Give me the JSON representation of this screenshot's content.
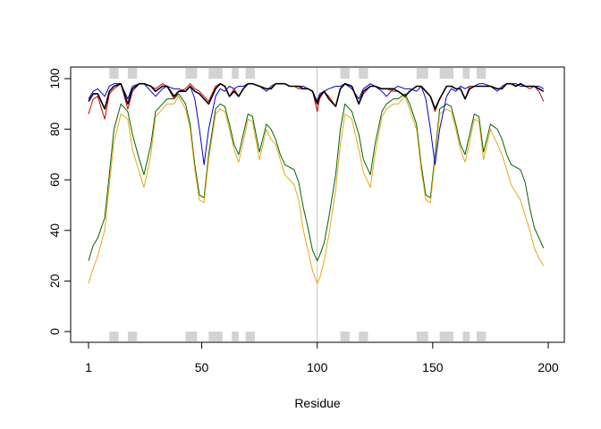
{
  "chart_data": {
    "type": "line",
    "title": "",
    "xlabel": "Residue",
    "ylabel": "",
    "xlim": [
      1,
      200
    ],
    "ylim": [
      0,
      100
    ],
    "x_ticks": [
      1,
      50,
      100,
      150,
      200
    ],
    "y_ticks": [
      0,
      20,
      40,
      60,
      80,
      100
    ],
    "vline": 100,
    "grid": false,
    "legend": "none",
    "shaded_regions": [
      [
        10,
        14
      ],
      [
        18,
        22
      ],
      [
        43,
        48
      ],
      [
        53,
        59
      ],
      [
        63,
        66
      ],
      [
        69,
        73
      ],
      [
        110,
        114
      ],
      [
        118,
        122
      ],
      [
        143,
        148
      ],
      [
        153,
        159
      ],
      [
        163,
        166
      ],
      [
        169,
        173
      ]
    ],
    "series": [
      {
        "color": "#006400",
        "x": [
          1,
          3,
          5,
          8,
          10,
          12,
          15,
          18,
          20,
          23,
          25,
          28,
          30,
          33,
          35,
          38,
          40,
          43,
          45,
          47,
          49,
          51,
          53,
          56,
          58,
          60,
          62,
          64,
          66,
          68,
          70,
          72,
          75,
          78,
          80,
          82,
          84,
          86,
          88,
          90,
          92,
          94,
          96,
          98,
          100,
          101,
          103,
          105,
          108,
          110,
          112,
          115,
          118,
          120,
          123,
          125,
          128,
          130,
          133,
          135,
          138,
          140,
          143,
          145,
          147,
          149,
          151,
          153,
          156,
          158,
          160,
          162,
          164,
          166,
          168,
          170,
          172,
          175,
          178,
          180,
          182,
          184,
          186,
          188,
          190,
          192,
          194,
          196,
          198
        ],
        "y": [
          28,
          34,
          37,
          45,
          62,
          80,
          90,
          87,
          78,
          68,
          62,
          74,
          87,
          90,
          92,
          92,
          94,
          90,
          82,
          66,
          54,
          53,
          70,
          88,
          90,
          89,
          82,
          74,
          70,
          78,
          86,
          85,
          71,
          82,
          80,
          76,
          70,
          66,
          65,
          64,
          59,
          49,
          41,
          32,
          28,
          30,
          35,
          45,
          62,
          80,
          90,
          87,
          78,
          68,
          62,
          74,
          87,
          90,
          92,
          92,
          94,
          90,
          82,
          66,
          54,
          53,
          70,
          88,
          90,
          89,
          82,
          74,
          70,
          78,
          86,
          85,
          71,
          82,
          80,
          76,
          70,
          66,
          65,
          64,
          59,
          49,
          41,
          37,
          33
        ]
      },
      {
        "color": "#E6A817",
        "x": [
          1,
          3,
          5,
          8,
          10,
          12,
          15,
          18,
          20,
          23,
          25,
          28,
          30,
          33,
          35,
          38,
          40,
          43,
          45,
          47,
          49,
          51,
          53,
          56,
          58,
          60,
          62,
          64,
          66,
          68,
          70,
          72,
          75,
          78,
          80,
          82,
          84,
          86,
          88,
          90,
          92,
          94,
          96,
          98,
          100,
          101,
          103,
          105,
          108,
          110,
          112,
          115,
          118,
          120,
          123,
          125,
          128,
          130,
          133,
          135,
          138,
          140,
          143,
          145,
          147,
          149,
          151,
          153,
          156,
          158,
          160,
          162,
          164,
          166,
          168,
          170,
          172,
          175,
          178,
          180,
          182,
          184,
          186,
          188,
          190,
          192,
          194,
          196,
          198
        ],
        "y": [
          19,
          25,
          30,
          40,
          58,
          75,
          86,
          84,
          72,
          63,
          57,
          70,
          85,
          88,
          90,
          90,
          93,
          88,
          80,
          64,
          52,
          51,
          68,
          86,
          88,
          87,
          80,
          72,
          67,
          75,
          84,
          83,
          68,
          80,
          76,
          74,
          68,
          62,
          60,
          58,
          52,
          40,
          32,
          24,
          19,
          21,
          28,
          38,
          56,
          74,
          86,
          84,
          72,
          63,
          57,
          70,
          85,
          88,
          90,
          90,
          93,
          88,
          80,
          64,
          52,
          51,
          68,
          86,
          88,
          87,
          80,
          72,
          67,
          75,
          84,
          83,
          68,
          80,
          74,
          70,
          64,
          58,
          55,
          52,
          46,
          40,
          33,
          29,
          26
        ]
      },
      {
        "color": "#0000CD",
        "x": [
          1,
          3,
          5,
          8,
          10,
          12,
          15,
          18,
          20,
          23,
          25,
          28,
          30,
          33,
          35,
          38,
          40,
          43,
          45,
          47,
          49,
          51,
          53,
          56,
          58,
          60,
          62,
          64,
          66,
          68,
          70,
          72,
          75,
          78,
          80,
          82,
          84,
          86,
          88,
          90,
          92,
          94,
          96,
          98,
          100,
          101,
          103,
          105,
          108,
          110,
          112,
          115,
          118,
          120,
          123,
          125,
          128,
          130,
          133,
          135,
          138,
          140,
          143,
          145,
          147,
          149,
          151,
          153,
          156,
          158,
          160,
          162,
          164,
          166,
          168,
          170,
          172,
          175,
          178,
          180,
          182,
          184,
          186,
          188,
          190,
          192,
          194,
          196,
          198
        ],
        "y": [
          92,
          95,
          96,
          93,
          97,
          98,
          98,
          92,
          97,
          98,
          98,
          95,
          93,
          96,
          97,
          96,
          96,
          95,
          97,
          92,
          80,
          66,
          80,
          93,
          96,
          95,
          97,
          96,
          97,
          97,
          98,
          98,
          97,
          95,
          97,
          98,
          98,
          98,
          97,
          97,
          97,
          97,
          96,
          95,
          91,
          94,
          95,
          96,
          97,
          97,
          98,
          96,
          92,
          96,
          98,
          97,
          95,
          93,
          96,
          97,
          96,
          96,
          95,
          97,
          92,
          80,
          66,
          80,
          93,
          96,
          95,
          97,
          96,
          97,
          97,
          98,
          98,
          97,
          95,
          97,
          98,
          98,
          98,
          97,
          97,
          97,
          97,
          97,
          96
        ]
      },
      {
        "color": "#CC0000",
        "x": [
          1,
          3,
          5,
          8,
          10,
          12,
          15,
          18,
          20,
          23,
          25,
          28,
          30,
          33,
          35,
          38,
          40,
          43,
          45,
          47,
          49,
          51,
          53,
          56,
          58,
          60,
          62,
          64,
          66,
          68,
          70,
          72,
          75,
          78,
          80,
          82,
          84,
          86,
          88,
          90,
          92,
          94,
          96,
          98,
          100,
          101,
          103,
          105,
          108,
          110,
          112,
          115,
          118,
          120,
          123,
          125,
          128,
          130,
          133,
          135,
          138,
          140,
          143,
          145,
          147,
          149,
          151,
          153,
          156,
          158,
          160,
          162,
          164,
          166,
          168,
          170,
          172,
          175,
          178,
          180,
          182,
          184,
          186,
          188,
          190,
          192,
          194,
          196,
          198
        ],
        "y": [
          86,
          92,
          93,
          84,
          94,
          96,
          98,
          88,
          95,
          98,
          98,
          97,
          96,
          98,
          97,
          92,
          95,
          96,
          98,
          96,
          95,
          93,
          91,
          97,
          98,
          97,
          93,
          96,
          93,
          96,
          98,
          98,
          97,
          96,
          96,
          98,
          98,
          98,
          97,
          97,
          96,
          96,
          96,
          95,
          87,
          92,
          95,
          93,
          89,
          96,
          98,
          97,
          90,
          94,
          97,
          97,
          96,
          96,
          95,
          95,
          93,
          95,
          97,
          97,
          95,
          93,
          87,
          92,
          97,
          97,
          96,
          96,
          92,
          97,
          97,
          97,
          97,
          97,
          96,
          96,
          98,
          98,
          97,
          98,
          97,
          96,
          97,
          95,
          91
        ]
      },
      {
        "color": "#000000",
        "x": [
          1,
          3,
          5,
          8,
          10,
          12,
          15,
          18,
          20,
          23,
          25,
          28,
          30,
          33,
          35,
          38,
          40,
          43,
          45,
          47,
          49,
          51,
          53,
          56,
          58,
          60,
          62,
          64,
          66,
          68,
          70,
          72,
          75,
          78,
          80,
          82,
          84,
          86,
          88,
          90,
          92,
          94,
          96,
          98,
          100,
          101,
          103,
          105,
          108,
          110,
          112,
          115,
          118,
          120,
          123,
          125,
          128,
          130,
          133,
          135,
          138,
          140,
          143,
          145,
          147,
          149,
          151,
          153,
          156,
          158,
          160,
          162,
          164,
          166,
          168,
          170,
          172,
          175,
          178,
          180,
          182,
          184,
          186,
          188,
          190,
          192,
          194,
          196,
          198
        ],
        "y": [
          91,
          94,
          94,
          88,
          95,
          97,
          98,
          90,
          96,
          98,
          98,
          97,
          95,
          97,
          97,
          93,
          95,
          95,
          97,
          95,
          94,
          92,
          90,
          96,
          98,
          97,
          93,
          95,
          93,
          96,
          98,
          98,
          97,
          96,
          96,
          98,
          98,
          98,
          97,
          97,
          97,
          96,
          96,
          95,
          90,
          93,
          95,
          92,
          89,
          96,
          98,
          97,
          90,
          95,
          97,
          97,
          96,
          96,
          96,
          95,
          93,
          95,
          97,
          97,
          95,
          93,
          88,
          92,
          97,
          97,
          96,
          96,
          92,
          96,
          97,
          97,
          97,
          97,
          96,
          96,
          98,
          98,
          97,
          98,
          97,
          97,
          97,
          96,
          95
        ]
      }
    ]
  }
}
